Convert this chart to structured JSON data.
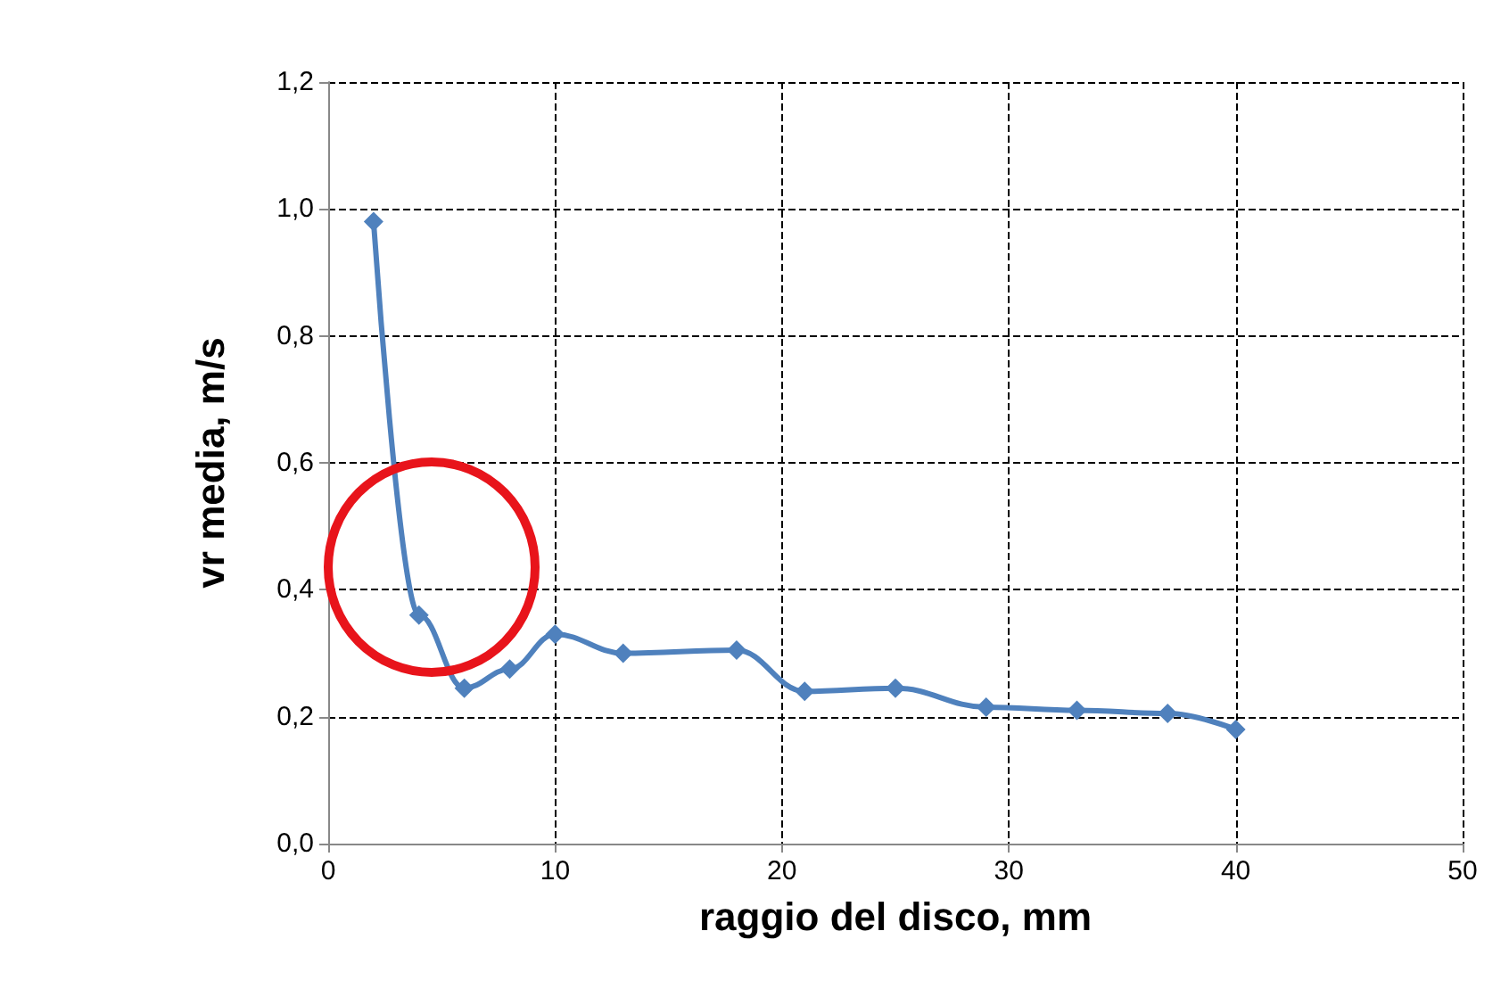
{
  "chart_data": {
    "type": "line",
    "xlabel": "raggio del disco, mm",
    "ylabel": "vr media, m/s",
    "x": [
      2,
      4,
      6,
      8,
      10,
      13,
      18,
      21,
      25,
      29,
      33,
      37,
      40
    ],
    "series": [
      {
        "color": "#4f81bd",
        "values": [
          0.98,
          0.36,
          0.245,
          0.275,
          0.33,
          0.3,
          0.305,
          0.24,
          0.245,
          0.215,
          0.21,
          0.205,
          0.18
        ]
      }
    ],
    "xlim": [
      0,
      50
    ],
    "xticks": [
      0,
      10,
      20,
      30,
      40,
      50
    ],
    "ylim": [
      0,
      1.2
    ],
    "yticks": [
      {
        "value": 0,
        "label": "0,0"
      },
      {
        "value": 0.2,
        "label": "0,2"
      },
      {
        "value": 0.4,
        "label": "0,4"
      },
      {
        "value": 0.6,
        "label": "0,6"
      },
      {
        "value": 0.8,
        "label": "0,8"
      },
      {
        "value": 1.0,
        "label": "1,0"
      },
      {
        "value": 1.2,
        "label": "1,2"
      }
    ],
    "grid": true,
    "marker": "diamond",
    "line_style": "solid"
  }
}
